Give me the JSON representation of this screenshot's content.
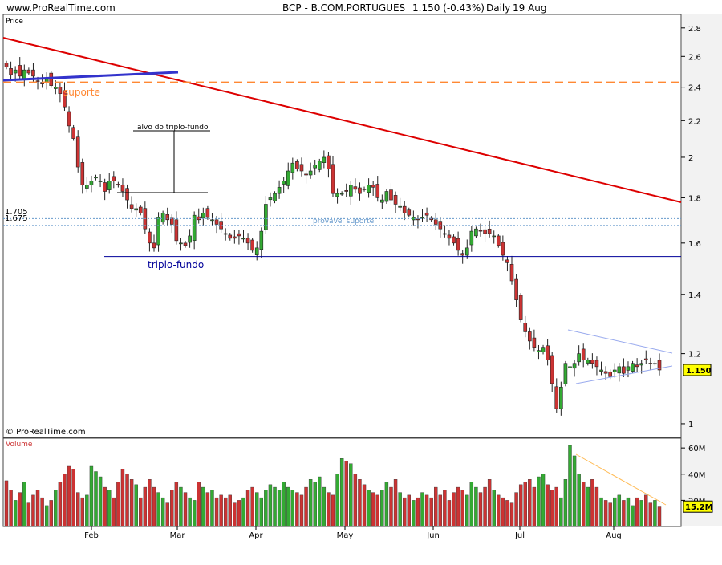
{
  "header": {
    "site": "www.ProRealTime.com",
    "title": "BCP - B.COM.PORTUGUES",
    "quote": "1.150 (-0.43%)",
    "period": "Daily",
    "date": "19 Aug"
  },
  "panels": {
    "price_label": "Price",
    "volume_label": "Volume",
    "copyright": "© ProRealTime.com"
  },
  "colors": {
    "up": "#33aa33",
    "down": "#cc3333",
    "resistance": "#dd0000",
    "trend_blue": "#3333cc",
    "support_orange": "#ff8833",
    "bottom_line": "#000099",
    "dotted_support": "#6699cc",
    "triangle": "#99aaee",
    "volume_trend": "#ffbb55",
    "last_price_bg": "#ffff00"
  },
  "chart_data": [
    {
      "type": "candlestick",
      "y_axis": {
        "ticks": [
          "2.8",
          "2.6",
          "2.4",
          "2.2",
          "2",
          "1.8",
          "1.6",
          "1.4",
          "1.2",
          "1"
        ],
        "tick_values": [
          2.8,
          2.6,
          2.4,
          2.2,
          2.0,
          1.8,
          1.6,
          1.4,
          1.2,
          1.0
        ],
        "ylim": [
          0.96,
          2.9
        ],
        "scale": "log"
      },
      "x_axis": {
        "ticks": [
          "Feb",
          "Mar",
          "Apr",
          "May",
          "Jun",
          "Jul",
          "Aug"
        ]
      },
      "last_price": "1.150",
      "closes": [
        2.53,
        2.48,
        2.51,
        2.47,
        2.51,
        2.49,
        2.47,
        2.44,
        2.42,
        2.46,
        2.41,
        2.4,
        2.36,
        2.28,
        2.17,
        2.1,
        1.95,
        1.86,
        1.86,
        1.88,
        1.9,
        1.88,
        1.83,
        1.88,
        1.88,
        1.86,
        1.83,
        1.79,
        1.75,
        1.75,
        1.73,
        1.66,
        1.6,
        1.58,
        1.71,
        1.73,
        1.7,
        1.68,
        1.61,
        1.6,
        1.59,
        1.63,
        1.72,
        1.7,
        1.73,
        1.71,
        1.7,
        1.68,
        1.66,
        1.64,
        1.62,
        1.62,
        1.63,
        1.62,
        1.6,
        1.57,
        1.58,
        1.65,
        1.77,
        1.8,
        1.82,
        1.85,
        1.88,
        1.93,
        1.97,
        1.94,
        1.93,
        1.91,
        1.93,
        1.96,
        1.98,
        2.0,
        1.94,
        1.82,
        1.82,
        1.82,
        1.83,
        1.86,
        1.84,
        1.82,
        1.84,
        1.86,
        1.85,
        1.8,
        1.79,
        1.83,
        1.79,
        1.77,
        1.76,
        1.73,
        1.72,
        1.71,
        1.7,
        1.71,
        1.72,
        1.7,
        1.68,
        1.66,
        1.64,
        1.62,
        1.6,
        1.57,
        1.55,
        1.58,
        1.65,
        1.66,
        1.65,
        1.64,
        1.64,
        1.63,
        1.59,
        1.55,
        1.52,
        1.45,
        1.38,
        1.31,
        1.27,
        1.24,
        1.22,
        1.21,
        1.22,
        1.18,
        1.11,
        1.04,
        1.1,
        1.17,
        1.16,
        1.17,
        1.2,
        1.18,
        1.18,
        1.17,
        1.16,
        1.15,
        1.14,
        1.13,
        1.15,
        1.16,
        1.14,
        1.16,
        1.17,
        1.16,
        1.17,
        1.18,
        1.17,
        1.17,
        1.15
      ],
      "annotations": [
        {
          "label": "suporte",
          "value": 2.43
        },
        {
          "label": "alvo do triplo-fundo"
        },
        {
          "label": "1.705",
          "value": 1.705
        },
        {
          "label": "1.675",
          "value": 1.675
        },
        {
          "label": "provável suporte",
          "value": 1.69
        },
        {
          "label": "triplo-fundo",
          "value": 1.545
        }
      ]
    },
    {
      "type": "bar",
      "y_axis": {
        "ticks": [
          "60M",
          "40M",
          "20M"
        ],
        "tick_values": [
          60,
          40,
          20
        ],
        "ylim": [
          0,
          65
        ]
      },
      "last_volume": "15.2M",
      "volumes": [
        35,
        28,
        20,
        26,
        34,
        18,
        24,
        28,
        22,
        16,
        20,
        28,
        34,
        40,
        46,
        44,
        26,
        22,
        24,
        46,
        42,
        38,
        30,
        28,
        22,
        34,
        44,
        40,
        36,
        32,
        22,
        30,
        36,
        30,
        26,
        22,
        18,
        28,
        34,
        30,
        26,
        22,
        20,
        34,
        30,
        26,
        28,
        22,
        24,
        22,
        24,
        18,
        20,
        22,
        28,
        30,
        26,
        22,
        28,
        32,
        30,
        28,
        34,
        30,
        28,
        26,
        24,
        30,
        36,
        34,
        38,
        30,
        26,
        24,
        40,
        52,
        50,
        48,
        40,
        36,
        32,
        28,
        26,
        24,
        28,
        34,
        30,
        36,
        26,
        22,
        24,
        20,
        22,
        26,
        24,
        22,
        30,
        24,
        28,
        20,
        26,
        30,
        28,
        24,
        34,
        30,
        26,
        30,
        36,
        28,
        24,
        22,
        20,
        18,
        26,
        32,
        34,
        36,
        30,
        38,
        40,
        32,
        28,
        30,
        22,
        36,
        62,
        54,
        40,
        34,
        30,
        36,
        30,
        22,
        20,
        18,
        22,
        24,
        20,
        22,
        16,
        22,
        20,
        24,
        18,
        20,
        15
      ]
    }
  ]
}
